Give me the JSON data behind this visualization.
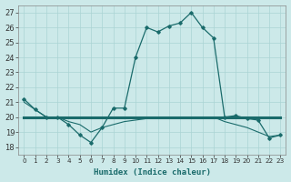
{
  "x": [
    0,
    1,
    2,
    3,
    4,
    5,
    6,
    7,
    8,
    9,
    10,
    11,
    12,
    13,
    14,
    15,
    16,
    17,
    18,
    19,
    20,
    21,
    22,
    23
  ],
  "line_main": [
    21.2,
    20.5,
    20.0,
    20.0,
    19.5,
    18.8,
    18.3,
    19.3,
    20.6,
    20.6,
    24.0,
    26.0,
    25.7,
    26.1,
    26.3,
    27.0,
    26.0,
    25.3,
    20.0,
    20.1,
    19.9,
    19.8,
    18.6,
    18.8
  ],
  "line_thin": [
    21.0,
    20.5,
    20.0,
    20.0,
    19.7,
    19.5,
    19.0,
    19.3,
    19.5,
    19.7,
    19.8,
    19.9,
    20.0,
    20.0,
    20.0,
    20.0,
    20.0,
    20.0,
    19.7,
    19.5,
    19.3,
    19.0,
    18.7,
    18.8
  ],
  "line_thick": [
    20.0,
    20.0,
    20.0,
    20.0,
    20.0,
    20.0,
    20.0,
    20.0,
    20.0,
    20.0,
    20.0,
    20.0,
    20.0,
    20.0,
    20.0,
    20.0,
    20.0,
    20.0,
    20.0,
    20.0,
    20.0,
    20.0,
    20.0,
    20.0
  ],
  "bg_color": "#cce9e9",
  "line_color": "#1a6b6b",
  "xlabel": "Humidex (Indice chaleur)",
  "yticks": [
    18,
    19,
    20,
    21,
    22,
    23,
    24,
    25,
    26,
    27
  ],
  "ylim": [
    17.5,
    27.5
  ],
  "xlim": [
    -0.5,
    23.5
  ]
}
